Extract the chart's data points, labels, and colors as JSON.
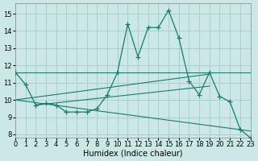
{
  "xlabel": "Humidex (Indice chaleur)",
  "bg_color": "#cce8e6",
  "grid_color": "#aacfcc",
  "line_color": "#1a7a6e",
  "xlim": [
    0,
    23
  ],
  "ylim": [
    7.8,
    15.6
  ],
  "yticks": [
    8,
    9,
    10,
    11,
    12,
    13,
    14,
    15
  ],
  "xticks": [
    0,
    1,
    2,
    3,
    4,
    5,
    6,
    7,
    8,
    9,
    10,
    11,
    12,
    13,
    14,
    15,
    16,
    17,
    18,
    19,
    20,
    21,
    22,
    23
  ],
  "main_curve": {
    "x": [
      0,
      1,
      2,
      3,
      4,
      5,
      6,
      7,
      8,
      9,
      10,
      11,
      12,
      13,
      14,
      15,
      16,
      17,
      18,
      19,
      20,
      21,
      22,
      23
    ],
    "y": [
      11.6,
      10.9,
      9.7,
      9.8,
      9.7,
      9.3,
      9.3,
      9.3,
      9.5,
      10.3,
      11.6,
      14.4,
      12.5,
      14.2,
      14.2,
      15.2,
      13.6,
      11.1,
      10.3,
      11.6,
      10.2,
      9.9,
      8.3,
      7.8
    ]
  },
  "trend_lines": [
    {
      "x": [
        0,
        23
      ],
      "y": [
        11.6,
        11.6
      ]
    },
    {
      "x": [
        0,
        19
      ],
      "y": [
        10.0,
        11.5
      ]
    },
    {
      "x": [
        0,
        23
      ],
      "y": [
        10.0,
        8.2
      ]
    },
    {
      "x": [
        2,
        19
      ],
      "y": [
        9.7,
        10.8
      ]
    }
  ]
}
